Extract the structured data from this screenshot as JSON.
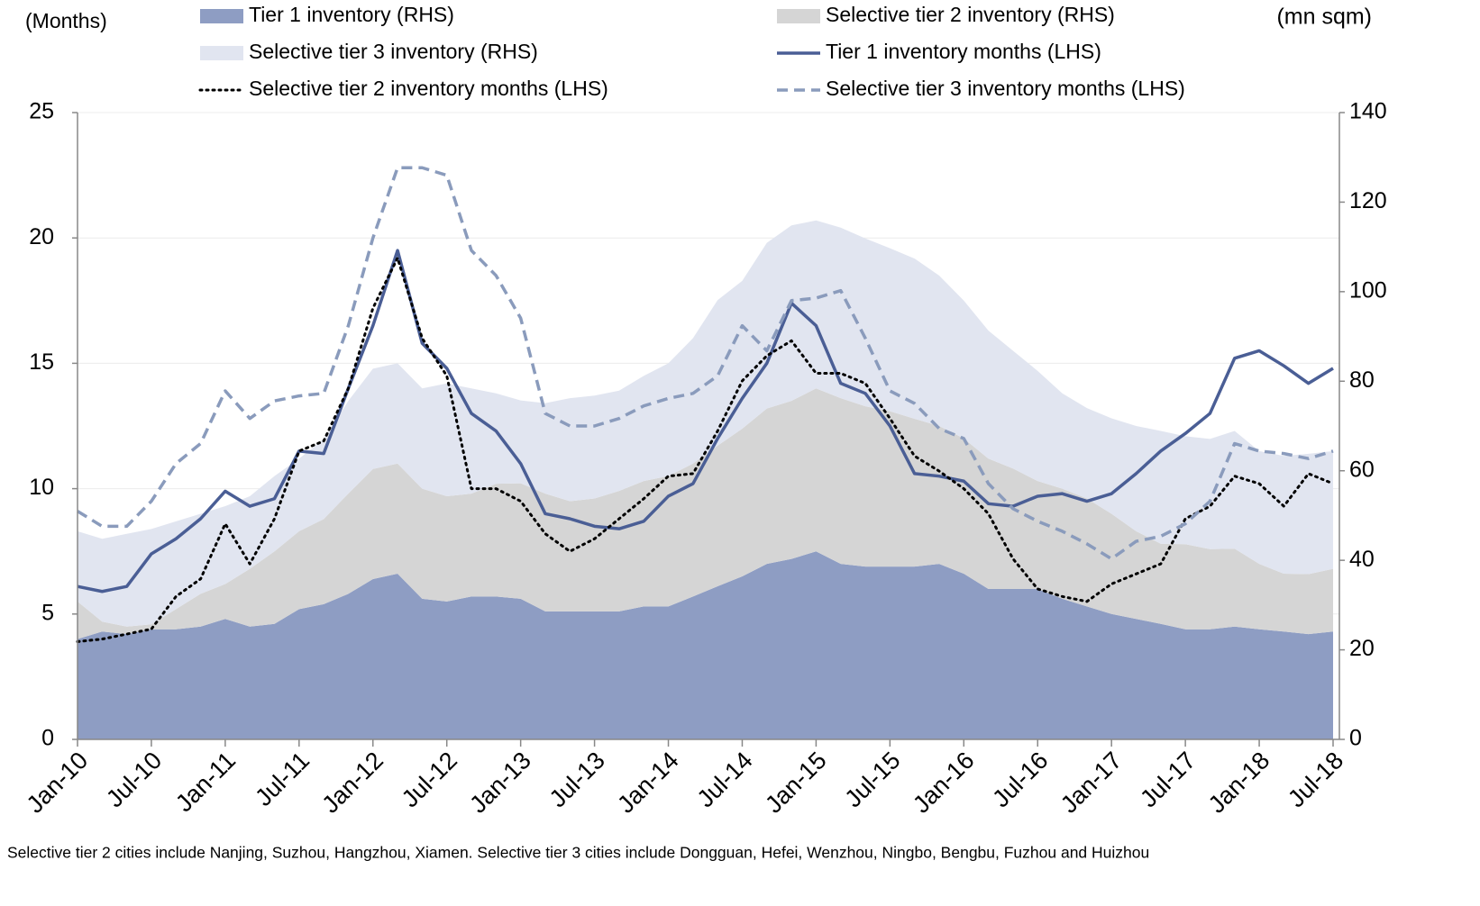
{
  "chart_data": {
    "type": "line",
    "ylabel": "(Months)",
    "y2label": "(mn sqm)",
    "note": "Selective tier 2 cities include Nanjing, Suzhou, Hangzhou, Xiamen. Selective tier 3 cities include Dongguan, Hefei, Wenzhou, Ningbo, Bengbu, Fuzhou and Huizhou",
    "categories": [
      "Jan-10",
      null,
      null,
      "Jul-10",
      null,
      null,
      "Jan-11",
      null,
      null,
      "Jul-11",
      null,
      null,
      "Jan-12",
      null,
      null,
      "Jul-12",
      null,
      null,
      "Jan-13",
      null,
      null,
      "Jul-13",
      null,
      null,
      "Jan-14",
      null,
      null,
      "Jul-14",
      null,
      null,
      "Jan-15",
      null,
      null,
      "Jul-15",
      null,
      null,
      "Jan-16",
      null,
      null,
      "Jul-16",
      null,
      null,
      "Jan-17",
      null,
      null,
      "Jul-17",
      null,
      null,
      "Jan-18",
      null,
      null,
      "Jul-18"
    ],
    "ylim": [
      0,
      25
    ],
    "yticks": [
      0,
      5,
      10,
      15,
      20,
      25
    ],
    "y2lim": [
      0,
      140
    ],
    "y2ticks": [
      0,
      20,
      40,
      60,
      80,
      100,
      120,
      140
    ],
    "grid": true,
    "stacked": true,
    "series": [
      {
        "name": "Tier 1 inventory (RHS)",
        "kind": "area",
        "axis": "y2",
        "color": "#8e9dc3",
        "values": [
          22.4,
          24.1,
          23.5,
          24.6,
          24.6,
          25.2,
          26.9,
          25.2,
          25.8,
          29.1,
          30.2,
          32.5,
          35.8,
          37.0,
          31.4,
          30.8,
          31.9,
          31.9,
          31.4,
          28.6,
          28.6,
          28.6,
          28.6,
          29.7,
          29.7,
          31.9,
          34.2,
          36.4,
          39.2,
          40.3,
          42.0,
          39.2,
          38.6,
          38.6,
          38.6,
          39.2,
          37.0,
          33.6,
          33.6,
          33.6,
          31.4,
          29.7,
          28.0,
          26.9,
          25.8,
          24.6,
          24.6,
          25.2,
          24.6,
          24.1,
          23.5,
          24.1
        ]
      },
      {
        "name": "Selective tier 2 inventory (RHS)",
        "kind": "area",
        "axis": "y2",
        "color": "#d5d5d5",
        "values": [
          8.4,
          2.2,
          1.7,
          1.1,
          4.5,
          7.3,
          7.8,
          12.9,
          16.2,
          17.4,
          19.0,
          22.4,
          24.6,
          24.6,
          24.6,
          23.5,
          23.0,
          25.2,
          25.8,
          26.3,
          24.6,
          25.2,
          26.9,
          28.0,
          29.1,
          29.7,
          31.4,
          33.0,
          34.7,
          35.3,
          36.4,
          37.0,
          35.8,
          34.7,
          33.0,
          30.8,
          30.2,
          29.1,
          26.9,
          24.1,
          24.6,
          24.1,
          22.4,
          19.6,
          17.9,
          19.0,
          17.9,
          17.4,
          14.6,
          12.9,
          13.4,
          14.0
        ]
      },
      {
        "name": "Selective tier 3 inventory (RHS)",
        "kind": "area",
        "axis": "y2",
        "color": "#e1e5f0",
        "values": [
          15.7,
          18.5,
          20.7,
          21.3,
          19.6,
          17.9,
          17.4,
          16.2,
          16.8,
          16.2,
          17.9,
          20.7,
          22.4,
          22.4,
          22.4,
          25.2,
          23.5,
          20.2,
          18.5,
          20.2,
          23.0,
          23.0,
          22.4,
          23.5,
          25.2,
          28.0,
          32.5,
          33.0,
          37.0,
          39.2,
          37.5,
          38.1,
          37.5,
          36.4,
          35.8,
          33.6,
          30.8,
          28.6,
          26.3,
          24.6,
          21.3,
          20.2,
          21.3,
          23.5,
          25.2,
          24.1,
          24.6,
          26.3,
          25.2,
          26.3,
          26.9,
          26.3
        ]
      },
      {
        "name": "Tier 1 inventory months (LHS)",
        "kind": "line",
        "dash": "solid",
        "color": "#4a5e95",
        "values": [
          6.1,
          5.9,
          6.1,
          7.4,
          8.0,
          8.8,
          9.9,
          9.3,
          9.6,
          11.5,
          11.4,
          14.0,
          16.5,
          19.5,
          15.8,
          14.8,
          13.0,
          12.3,
          11.0,
          9.0,
          8.8,
          8.5,
          8.4,
          8.7,
          9.7,
          10.2,
          12.0,
          13.6,
          15.0,
          17.4,
          16.5,
          14.2,
          13.8,
          12.5,
          10.6,
          10.5,
          10.3,
          9.4,
          9.3,
          9.7,
          9.8,
          9.5,
          9.8,
          10.6,
          11.5,
          12.2,
          13.0,
          15.2,
          15.5,
          14.9,
          14.2,
          14.8
        ]
      },
      {
        "name": "Selective tier 2 inventory months (LHS)",
        "kind": "line",
        "dash": "dotted",
        "color": "#000000",
        "values": [
          3.9,
          4.0,
          4.2,
          4.4,
          5.7,
          6.4,
          8.6,
          7.0,
          8.8,
          11.5,
          11.9,
          14.0,
          17.2,
          19.2,
          16.0,
          14.5,
          10.0,
          10.0,
          9.5,
          8.2,
          7.5,
          8.0,
          8.8,
          9.6,
          10.5,
          10.6,
          12.3,
          14.3,
          15.3,
          15.9,
          14.6,
          14.6,
          14.2,
          12.8,
          11.3,
          10.7,
          10.0,
          9.0,
          7.2,
          6.0,
          5.7,
          5.5,
          6.2,
          6.6,
          7.0,
          8.8,
          9.3,
          10.5,
          10.2,
          9.3,
          10.6,
          10.2
        ]
      },
      {
        "name": "Selective tier 3 inventory months (LHS)",
        "kind": "line",
        "dash": "dashed",
        "color": "#8a9bbc",
        "values": [
          9.1,
          8.5,
          8.5,
          9.5,
          11.0,
          11.8,
          13.9,
          12.8,
          13.5,
          13.7,
          13.8,
          16.5,
          20.0,
          22.8,
          22.8,
          22.5,
          19.5,
          18.5,
          16.8,
          13.0,
          12.5,
          12.5,
          12.8,
          13.3,
          13.6,
          13.8,
          14.5,
          16.5,
          15.5,
          17.5,
          17.6,
          17.9,
          16.0,
          13.9,
          13.4,
          12.4,
          12.0,
          10.2,
          9.2,
          8.7,
          8.3,
          7.8,
          7.2,
          7.9,
          8.1,
          8.6,
          9.5,
          11.8,
          11.5,
          11.4,
          11.2,
          11.5
        ]
      }
    ]
  }
}
